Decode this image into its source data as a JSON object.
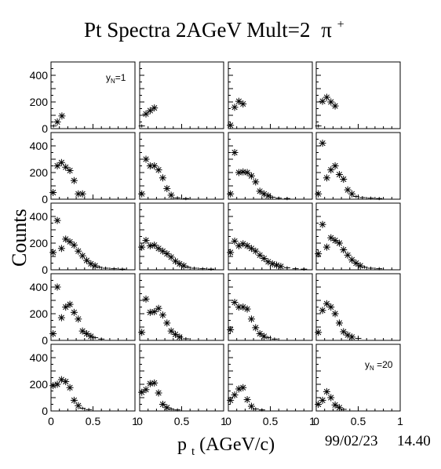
{
  "title": "Pt Spectra 2AGeV Mult=2",
  "title_particle": "π",
  "title_particle_sup": "+",
  "xlabel_main": "p",
  "xlabel_sub": "t",
  "xlabel_rest": " (AGeV/c)",
  "ylabel": "Counts",
  "footer": {
    "date": "99/02/23",
    "time": "14.40"
  },
  "chart_data": {
    "type": "scatter",
    "grid_rows": 5,
    "grid_cols": 4,
    "xlim": [
      0,
      1
    ],
    "ylim": [
      0,
      500
    ],
    "x_ticks": [
      0,
      0.5,
      1
    ],
    "x_tick_labels": [
      "0",
      "0.5",
      "1"
    ],
    "y_ticks": [
      0,
      200,
      400
    ],
    "y_tick_labels": [
      "0",
      "200",
      "400"
    ],
    "marker": "asterisk",
    "panel_labels": [
      {
        "panel": 0,
        "main": "y",
        "sub": "N",
        "rest": "=1"
      },
      {
        "panel": 19,
        "main": "y",
        "sub": "N",
        "rest": " =20"
      }
    ],
    "panels": [
      {
        "rapidity_bin": 1,
        "points": [
          [
            0.03,
            20
          ],
          [
            0.075,
            50
          ],
          [
            0.13,
            95
          ]
        ]
      },
      {
        "rapidity_bin": 2,
        "points": [
          [
            0.025,
            20
          ],
          [
            0.075,
            110
          ],
          [
            0.125,
            135
          ],
          [
            0.175,
            155
          ]
        ]
      },
      {
        "rapidity_bin": 3,
        "points": [
          [
            0.025,
            25
          ],
          [
            0.075,
            160
          ],
          [
            0.125,
            205
          ],
          [
            0.175,
            185
          ]
        ]
      },
      {
        "rapidity_bin": 4,
        "points": [
          [
            0.025,
            20
          ],
          [
            0.075,
            205
          ],
          [
            0.125,
            235
          ],
          [
            0.175,
            200
          ],
          [
            0.225,
            170
          ]
        ]
      },
      {
        "rapidity_bin": 5,
        "points": [
          [
            0.025,
            50
          ],
          [
            0.075,
            250
          ],
          [
            0.125,
            275
          ],
          [
            0.175,
            240
          ],
          [
            0.225,
            215
          ],
          [
            0.275,
            140
          ],
          [
            0.325,
            40
          ],
          [
            0.375,
            40
          ]
        ]
      },
      {
        "rapidity_bin": 6,
        "points": [
          [
            0.025,
            40
          ],
          [
            0.075,
            300
          ],
          [
            0.125,
            250
          ],
          [
            0.175,
            250
          ],
          [
            0.225,
            220
          ],
          [
            0.275,
            160
          ],
          [
            0.325,
            80
          ],
          [
            0.375,
            30
          ],
          [
            0.45,
            10
          ],
          [
            0.55,
            5
          ]
        ]
      },
      {
        "rapidity_bin": 7,
        "points": [
          [
            0.025,
            40
          ],
          [
            0.075,
            350
          ],
          [
            0.125,
            200
          ],
          [
            0.175,
            205
          ],
          [
            0.225,
            200
          ],
          [
            0.275,
            175
          ],
          [
            0.325,
            130
          ],
          [
            0.375,
            60
          ],
          [
            0.425,
            40
          ],
          [
            0.475,
            25
          ],
          [
            0.525,
            15
          ],
          [
            0.6,
            8
          ],
          [
            0.7,
            5
          ]
        ]
      },
      {
        "rapidity_bin": 8,
        "points": [
          [
            0.025,
            40
          ],
          [
            0.075,
            420
          ],
          [
            0.125,
            160
          ],
          [
            0.175,
            220
          ],
          [
            0.225,
            250
          ],
          [
            0.275,
            185
          ],
          [
            0.325,
            150
          ],
          [
            0.375,
            70
          ],
          [
            0.425,
            40
          ],
          [
            0.475,
            20
          ],
          [
            0.55,
            12
          ],
          [
            0.65,
            8
          ],
          [
            0.75,
            5
          ]
        ]
      },
      {
        "rapidity_bin": 9,
        "points": [
          [
            0.025,
            130
          ],
          [
            0.075,
            370
          ],
          [
            0.125,
            160
          ],
          [
            0.175,
            230
          ],
          [
            0.225,
            210
          ],
          [
            0.275,
            185
          ],
          [
            0.325,
            140
          ],
          [
            0.375,
            105
          ],
          [
            0.425,
            70
          ],
          [
            0.475,
            45
          ],
          [
            0.525,
            30
          ],
          [
            0.575,
            20
          ],
          [
            0.65,
            12
          ],
          [
            0.75,
            8
          ],
          [
            0.85,
            5
          ]
        ]
      },
      {
        "rapidity_bin": 10,
        "points": [
          [
            0.025,
            170
          ],
          [
            0.075,
            220
          ],
          [
            0.125,
            180
          ],
          [
            0.175,
            185
          ],
          [
            0.225,
            160
          ],
          [
            0.275,
            140
          ],
          [
            0.325,
            120
          ],
          [
            0.375,
            95
          ],
          [
            0.425,
            65
          ],
          [
            0.475,
            45
          ],
          [
            0.525,
            30
          ],
          [
            0.575,
            20
          ],
          [
            0.65,
            12
          ],
          [
            0.75,
            8
          ],
          [
            0.85,
            5
          ]
        ]
      },
      {
        "rapidity_bin": 11,
        "points": [
          [
            0.025,
            130
          ],
          [
            0.075,
            215
          ],
          [
            0.125,
            180
          ],
          [
            0.175,
            195
          ],
          [
            0.225,
            180
          ],
          [
            0.275,
            160
          ],
          [
            0.325,
            140
          ],
          [
            0.375,
            110
          ],
          [
            0.425,
            85
          ],
          [
            0.475,
            60
          ],
          [
            0.525,
            45
          ],
          [
            0.575,
            35
          ],
          [
            0.625,
            25
          ],
          [
            0.7,
            15
          ],
          [
            0.8,
            8
          ],
          [
            0.9,
            5
          ]
        ]
      },
      {
        "rapidity_bin": 12,
        "points": [
          [
            0.025,
            120
          ],
          [
            0.075,
            340
          ],
          [
            0.125,
            170
          ],
          [
            0.175,
            240
          ],
          [
            0.225,
            220
          ],
          [
            0.275,
            200
          ],
          [
            0.325,
            150
          ],
          [
            0.375,
            110
          ],
          [
            0.425,
            75
          ],
          [
            0.475,
            50
          ],
          [
            0.525,
            30
          ],
          [
            0.575,
            20
          ],
          [
            0.65,
            12
          ],
          [
            0.75,
            8
          ]
        ]
      },
      {
        "rapidity_bin": 13,
        "points": [
          [
            0.025,
            50
          ],
          [
            0.075,
            400
          ],
          [
            0.125,
            170
          ],
          [
            0.175,
            250
          ],
          [
            0.225,
            270
          ],
          [
            0.275,
            210
          ],
          [
            0.325,
            160
          ],
          [
            0.375,
            70
          ],
          [
            0.425,
            50
          ],
          [
            0.475,
            30
          ],
          [
            0.525,
            20
          ],
          [
            0.6,
            10
          ]
        ]
      },
      {
        "rapidity_bin": 14,
        "points": [
          [
            0.025,
            60
          ],
          [
            0.075,
            310
          ],
          [
            0.125,
            210
          ],
          [
            0.175,
            215
          ],
          [
            0.225,
            240
          ],
          [
            0.275,
            190
          ],
          [
            0.325,
            130
          ],
          [
            0.375,
            70
          ],
          [
            0.425,
            45
          ],
          [
            0.475,
            25
          ],
          [
            0.55,
            12
          ]
        ]
      },
      {
        "rapidity_bin": 15,
        "points": [
          [
            0.025,
            80
          ],
          [
            0.075,
            285
          ],
          [
            0.125,
            250
          ],
          [
            0.175,
            250
          ],
          [
            0.225,
            235
          ],
          [
            0.275,
            160
          ],
          [
            0.325,
            95
          ],
          [
            0.375,
            50
          ],
          [
            0.425,
            30
          ],
          [
            0.475,
            20
          ],
          [
            0.55,
            10
          ]
        ]
      },
      {
        "rapidity_bin": 16,
        "points": [
          [
            0.025,
            60
          ],
          [
            0.075,
            225
          ],
          [
            0.125,
            275
          ],
          [
            0.175,
            250
          ],
          [
            0.225,
            200
          ],
          [
            0.275,
            130
          ],
          [
            0.325,
            65
          ],
          [
            0.375,
            40
          ],
          [
            0.425,
            25
          ],
          [
            0.5,
            15
          ]
        ]
      },
      {
        "rapidity_bin": 17,
        "points": [
          [
            0.025,
            190
          ],
          [
            0.075,
            200
          ],
          [
            0.125,
            235
          ],
          [
            0.175,
            220
          ],
          [
            0.225,
            175
          ],
          [
            0.275,
            80
          ],
          [
            0.325,
            40
          ],
          [
            0.375,
            20
          ],
          [
            0.45,
            10
          ]
        ]
      },
      {
        "rapidity_bin": 18,
        "points": [
          [
            0.025,
            140
          ],
          [
            0.075,
            160
          ],
          [
            0.125,
            205
          ],
          [
            0.175,
            210
          ],
          [
            0.225,
            135
          ],
          [
            0.275,
            50
          ],
          [
            0.325,
            25
          ],
          [
            0.375,
            15
          ],
          [
            0.45,
            8
          ]
        ]
      },
      {
        "rapidity_bin": 19,
        "points": [
          [
            0.025,
            80
          ],
          [
            0.075,
            120
          ],
          [
            0.125,
            165
          ],
          [
            0.175,
            175
          ],
          [
            0.225,
            85
          ],
          [
            0.275,
            35
          ],
          [
            0.325,
            15
          ],
          [
            0.4,
            8
          ]
        ]
      },
      {
        "rapidity_bin": 20,
        "points": [
          [
            0.025,
            50
          ],
          [
            0.075,
            80
          ],
          [
            0.125,
            145
          ],
          [
            0.175,
            100
          ],
          [
            0.225,
            45
          ],
          [
            0.275,
            25
          ],
          [
            0.325,
            12
          ]
        ]
      }
    ]
  }
}
